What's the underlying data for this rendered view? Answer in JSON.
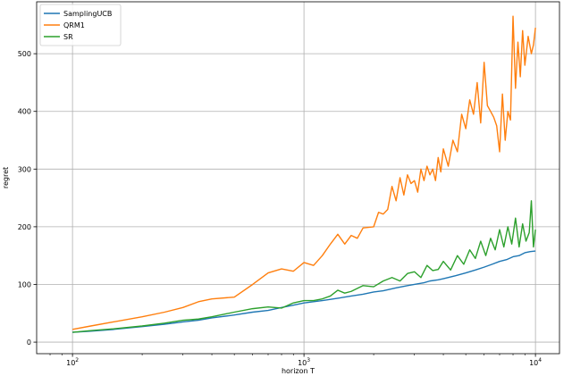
{
  "chart_data": {
    "type": "line",
    "title": "",
    "xlabel": "horizon T",
    "ylabel": "regret",
    "xscale": "log",
    "xlim": [
      70,
      12700
    ],
    "ylim": [
      -20,
      590
    ],
    "grid": true,
    "legend_position": "top-left",
    "x_ticks": [
      {
        "value": 100,
        "base": "10",
        "exp": "2"
      },
      {
        "value": 1000,
        "base": "10",
        "exp": "3"
      },
      {
        "value": 10000,
        "base": "10",
        "exp": "4"
      }
    ],
    "y_ticks": [
      0,
      100,
      200,
      300,
      400,
      500
    ],
    "series": [
      {
        "name": "SamplingUCB",
        "color": "#1f77b4",
        "points": [
          [
            100,
            17
          ],
          [
            120,
            19
          ],
          [
            150,
            22
          ],
          [
            200,
            27
          ],
          [
            250,
            31
          ],
          [
            300,
            35
          ],
          [
            350,
            38
          ],
          [
            400,
            42
          ],
          [
            500,
            47
          ],
          [
            600,
            52
          ],
          [
            700,
            55
          ],
          [
            800,
            60
          ],
          [
            900,
            64
          ],
          [
            1000,
            68
          ],
          [
            1200,
            72
          ],
          [
            1400,
            76
          ],
          [
            1600,
            80
          ],
          [
            1800,
            83
          ],
          [
            2000,
            87
          ],
          [
            2200,
            89
          ],
          [
            2500,
            94
          ],
          [
            2800,
            98
          ],
          [
            3000,
            100
          ],
          [
            3300,
            103
          ],
          [
            3500,
            106
          ],
          [
            3800,
            108
          ],
          [
            4000,
            110
          ],
          [
            4500,
            115
          ],
          [
            5000,
            120
          ],
          [
            5500,
            125
          ],
          [
            6000,
            130
          ],
          [
            6500,
            135
          ],
          [
            7000,
            140
          ],
          [
            7500,
            143
          ],
          [
            8000,
            148
          ],
          [
            8500,
            150
          ],
          [
            9000,
            155
          ],
          [
            9500,
            157
          ],
          [
            10000,
            158
          ]
        ]
      },
      {
        "name": "QRM1",
        "color": "#ff7f0e",
        "points": [
          [
            100,
            22
          ],
          [
            120,
            28
          ],
          [
            150,
            35
          ],
          [
            200,
            44
          ],
          [
            250,
            52
          ],
          [
            300,
            60
          ],
          [
            350,
            70
          ],
          [
            400,
            75
          ],
          [
            500,
            78
          ],
          [
            600,
            100
          ],
          [
            700,
            120
          ],
          [
            800,
            127
          ],
          [
            900,
            123
          ],
          [
            1000,
            138
          ],
          [
            1100,
            133
          ],
          [
            1200,
            150
          ],
          [
            1300,
            170
          ],
          [
            1400,
            187
          ],
          [
            1500,
            170
          ],
          [
            1600,
            185
          ],
          [
            1700,
            180
          ],
          [
            1800,
            198
          ],
          [
            2000,
            200
          ],
          [
            2100,
            225
          ],
          [
            2200,
            222
          ],
          [
            2300,
            230
          ],
          [
            2400,
            270
          ],
          [
            2500,
            245
          ],
          [
            2600,
            285
          ],
          [
            2700,
            255
          ],
          [
            2800,
            290
          ],
          [
            2900,
            275
          ],
          [
            3000,
            280
          ],
          [
            3100,
            260
          ],
          [
            3200,
            300
          ],
          [
            3300,
            280
          ],
          [
            3400,
            305
          ],
          [
            3500,
            290
          ],
          [
            3600,
            300
          ],
          [
            3700,
            280
          ],
          [
            3800,
            320
          ],
          [
            3900,
            295
          ],
          [
            4000,
            335
          ],
          [
            4200,
            305
          ],
          [
            4400,
            350
          ],
          [
            4600,
            330
          ],
          [
            4800,
            395
          ],
          [
            5000,
            370
          ],
          [
            5200,
            420
          ],
          [
            5400,
            395
          ],
          [
            5600,
            450
          ],
          [
            5800,
            380
          ],
          [
            6000,
            485
          ],
          [
            6200,
            410
          ],
          [
            6400,
            400
          ],
          [
            6600,
            390
          ],
          [
            6800,
            375
          ],
          [
            7000,
            330
          ],
          [
            7200,
            430
          ],
          [
            7400,
            350
          ],
          [
            7600,
            400
          ],
          [
            7800,
            385
          ],
          [
            8000,
            565
          ],
          [
            8200,
            440
          ],
          [
            8400,
            520
          ],
          [
            8600,
            460
          ],
          [
            8800,
            540
          ],
          [
            9000,
            480
          ],
          [
            9300,
            530
          ],
          [
            9600,
            500
          ],
          [
            9800,
            515
          ],
          [
            10000,
            545
          ]
        ]
      },
      {
        "name": "SR",
        "color": "#2ca02c",
        "points": [
          [
            100,
            17
          ],
          [
            120,
            20
          ],
          [
            150,
            23
          ],
          [
            200,
            28
          ],
          [
            250,
            33
          ],
          [
            300,
            38
          ],
          [
            350,
            40
          ],
          [
            400,
            44
          ],
          [
            500,
            52
          ],
          [
            600,
            58
          ],
          [
            700,
            61
          ],
          [
            800,
            59
          ],
          [
            900,
            68
          ],
          [
            1000,
            72
          ],
          [
            1100,
            72
          ],
          [
            1200,
            75
          ],
          [
            1300,
            80
          ],
          [
            1400,
            90
          ],
          [
            1500,
            85
          ],
          [
            1600,
            88
          ],
          [
            1800,
            98
          ],
          [
            2000,
            96
          ],
          [
            2200,
            106
          ],
          [
            2400,
            112
          ],
          [
            2600,
            106
          ],
          [
            2800,
            119
          ],
          [
            3000,
            122
          ],
          [
            3200,
            112
          ],
          [
            3400,
            133
          ],
          [
            3600,
            124
          ],
          [
            3800,
            126
          ],
          [
            4000,
            140
          ],
          [
            4300,
            125
          ],
          [
            4600,
            150
          ],
          [
            4900,
            135
          ],
          [
            5200,
            160
          ],
          [
            5500,
            145
          ],
          [
            5800,
            175
          ],
          [
            6100,
            150
          ],
          [
            6400,
            180
          ],
          [
            6700,
            160
          ],
          [
            7000,
            195
          ],
          [
            7300,
            165
          ],
          [
            7600,
            200
          ],
          [
            7900,
            170
          ],
          [
            8200,
            215
          ],
          [
            8500,
            165
          ],
          [
            8800,
            205
          ],
          [
            9100,
            175
          ],
          [
            9400,
            190
          ],
          [
            9600,
            245
          ],
          [
            9800,
            165
          ],
          [
            10000,
            195
          ]
        ]
      }
    ]
  }
}
